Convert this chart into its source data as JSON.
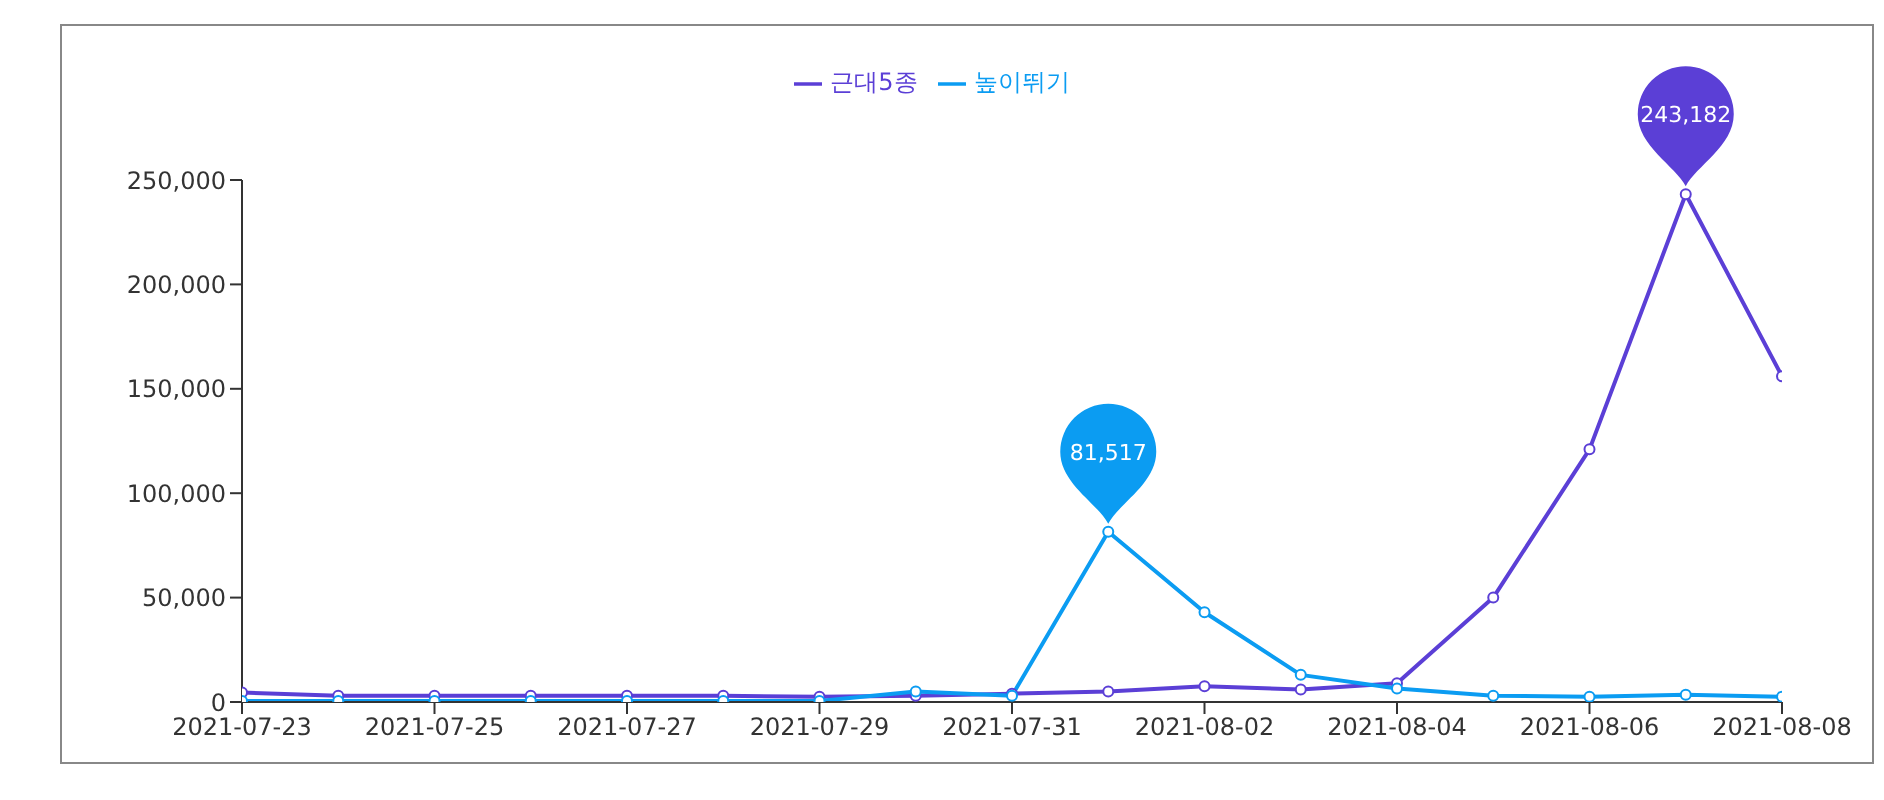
{
  "chart_data": {
    "type": "line",
    "x": [
      "2021-07-23",
      "2021-07-24",
      "2021-07-25",
      "2021-07-26",
      "2021-07-27",
      "2021-07-28",
      "2021-07-29",
      "2021-07-30",
      "2021-07-31",
      "2021-08-01",
      "2021-08-02",
      "2021-08-03",
      "2021-08-04",
      "2021-08-05",
      "2021-08-06",
      "2021-08-07",
      "2021-08-08"
    ],
    "series": [
      {
        "name": "근대5종",
        "color": "#5b3fd6",
        "values": [
          4500,
          3000,
          3000,
          3000,
          3000,
          3000,
          2500,
          3000,
          4000,
          5000,
          7500,
          6000,
          9000,
          50000,
          121000,
          243182,
          156000
        ],
        "value_labels": [
          null,
          null,
          null,
          null,
          null,
          null,
          null,
          null,
          null,
          null,
          null,
          null,
          null,
          null,
          null,
          "243,182",
          null
        ]
      },
      {
        "name": "높이뛰기",
        "color": "#0b9cf2",
        "values": [
          500,
          500,
          500,
          500,
          500,
          500,
          500,
          5000,
          3000,
          81517,
          43000,
          13000,
          6500,
          3000,
          2500,
          3500,
          2500
        ],
        "value_labels": [
          null,
          null,
          null,
          null,
          null,
          null,
          null,
          null,
          null,
          "81,517",
          null,
          null,
          null,
          null,
          null,
          null,
          null
        ]
      }
    ],
    "xlim": [
      "2021-07-23",
      "2021-08-08"
    ],
    "xticks": [
      "2021-07-23",
      "2021-07-25",
      "2021-07-27",
      "2021-07-29",
      "2021-07-31",
      "2021-08-02",
      "2021-08-04",
      "2021-08-06",
      "2021-08-08"
    ],
    "ylim": [
      0,
      250000
    ],
    "yticks": [
      {
        "value": 0,
        "label": "0"
      },
      {
        "value": 50000,
        "label": "50,000"
      },
      {
        "value": 100000,
        "label": "100,000"
      },
      {
        "value": 150000,
        "label": "150,000"
      },
      {
        "value": 200000,
        "label": "200,000"
      },
      {
        "value": 250000,
        "label": "250,000"
      }
    ],
    "grid": false,
    "legend": "top",
    "marker": "circle",
    "line_style": "solid"
  }
}
